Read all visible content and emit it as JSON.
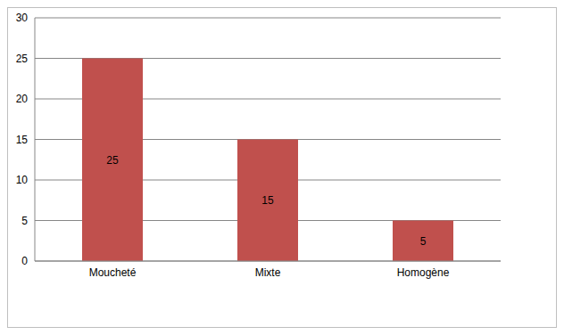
{
  "chart_data": {
    "type": "bar",
    "categories": [
      "Moucheté",
      "Mixte",
      "Homogène"
    ],
    "values": [
      25,
      15,
      5
    ],
    "color": "#c0504d",
    "ylim": [
      0,
      30
    ],
    "yticks": [
      0,
      5,
      10,
      15,
      20,
      25,
      30
    ],
    "grid": true,
    "data_labels": true
  }
}
